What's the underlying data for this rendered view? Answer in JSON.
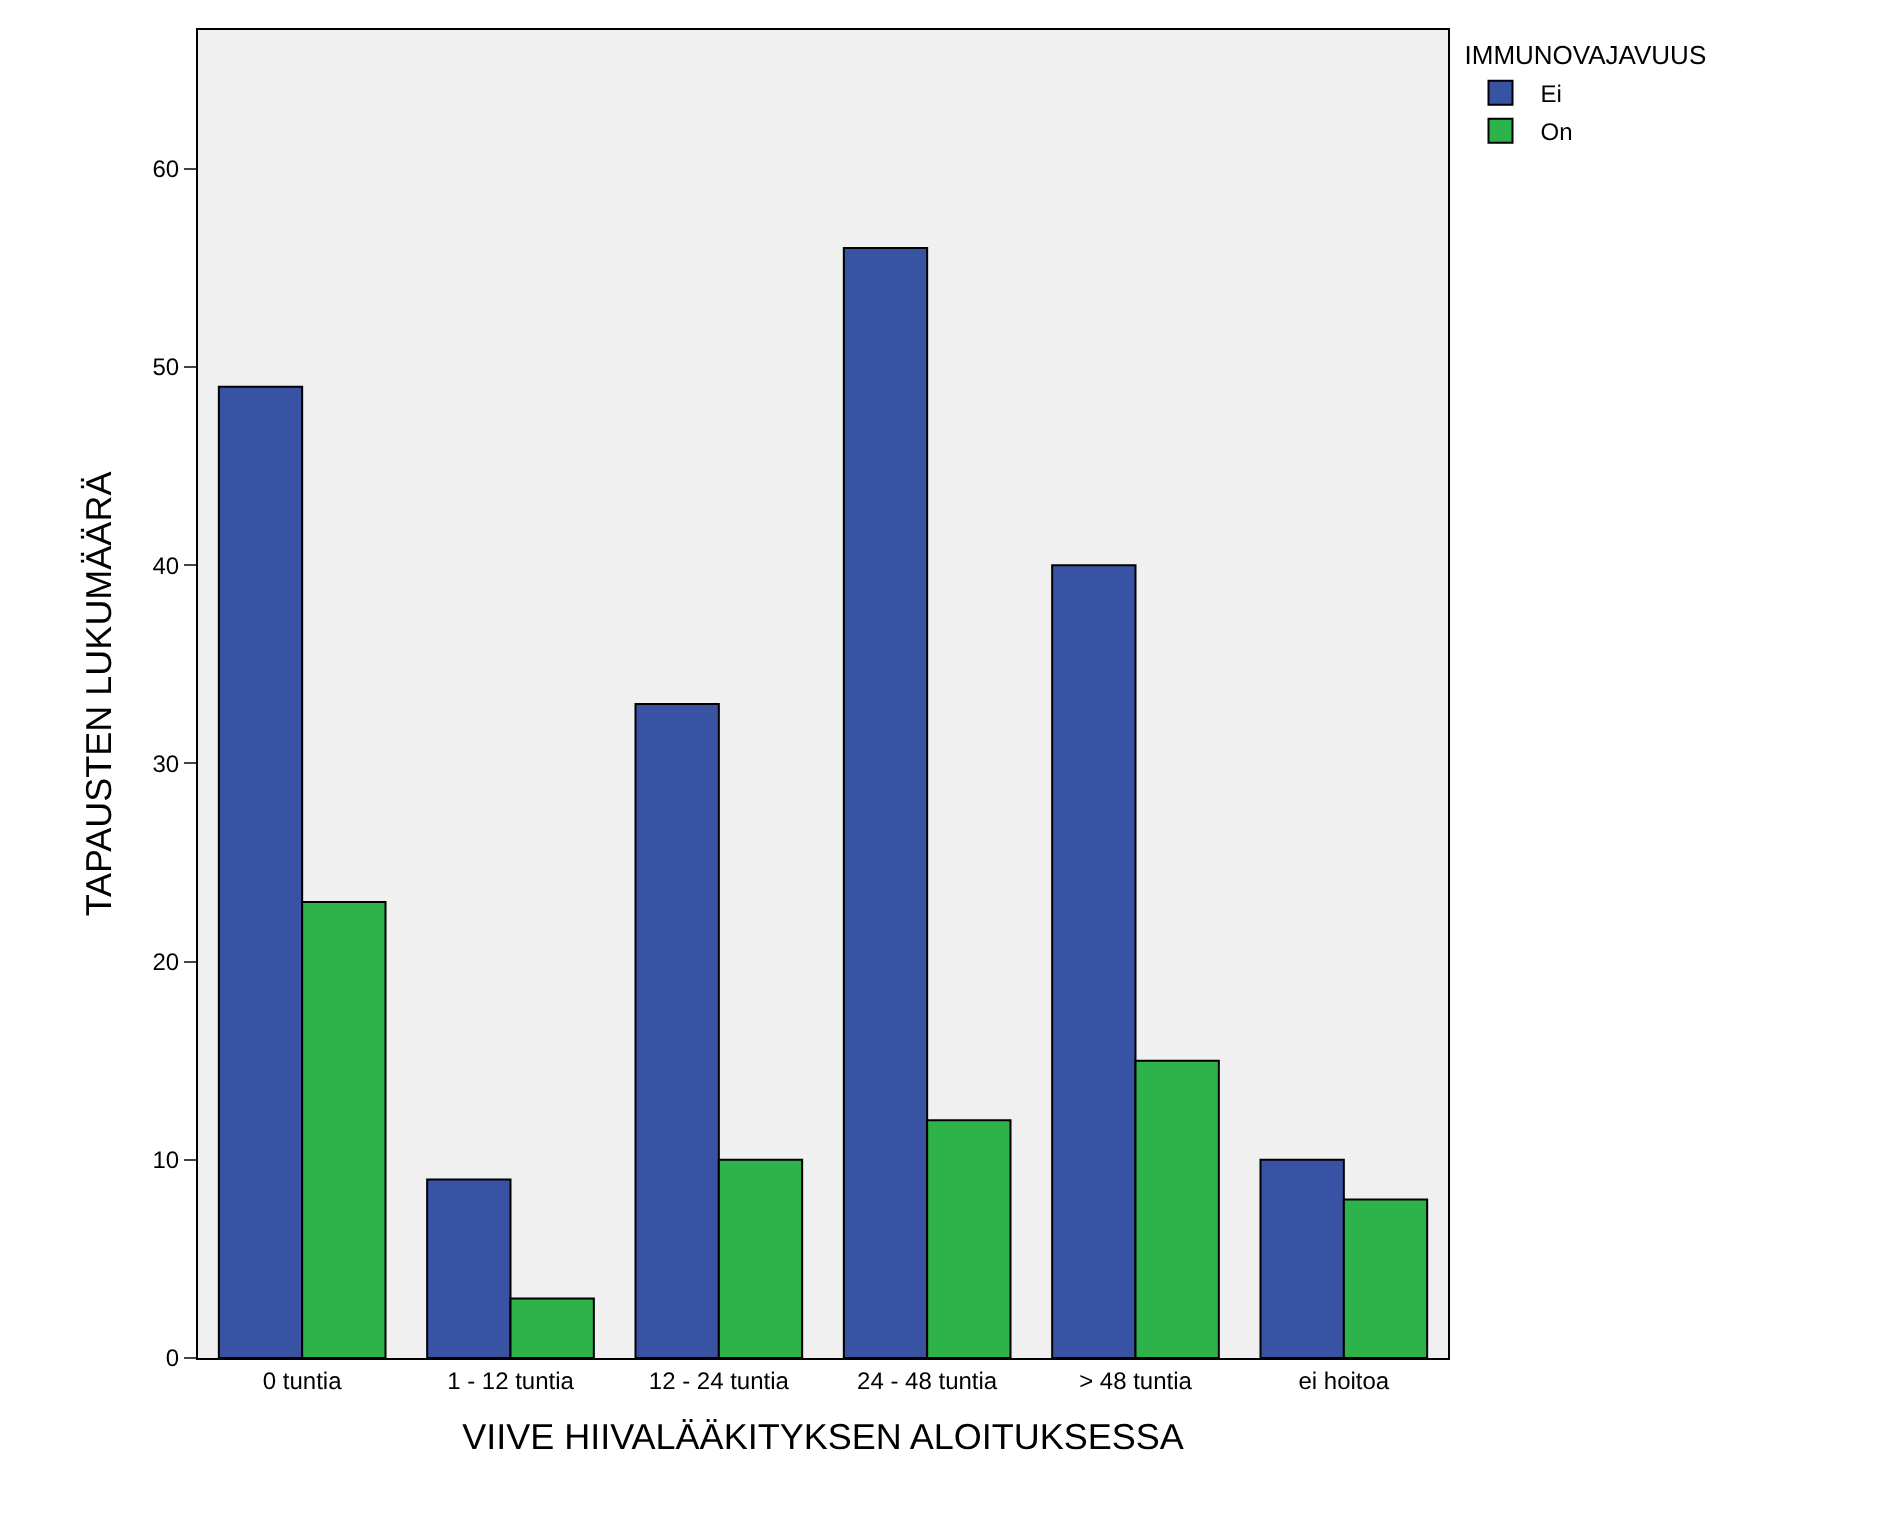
{
  "chart_data": {
    "type": "bar",
    "xlabel": "VIIVE HIIVALÄÄKITYKSEN ALOITUKSESSA",
    "ylabel": "TAPAUSTEN LUKUMÄÄRÄ",
    "legend_title": "IMMUNOVAJAVUUS",
    "categories": [
      "0 tuntia",
      "1 - 12 tuntia",
      "12 - 24 tuntia",
      "24 - 48 tuntia",
      "> 48 tuntia",
      "ei hoitoa"
    ],
    "series": [
      {
        "name": "Ei",
        "color": "#3953a4",
        "values": [
          49,
          9,
          33,
          56,
          40,
          10
        ]
      },
      {
        "name": "On",
        "color": "#2db34a",
        "values": [
          23,
          3,
          10,
          12,
          15,
          8
        ]
      }
    ],
    "ylim": [
      0,
      67
    ],
    "yticks": [
      0,
      10,
      20,
      30,
      40,
      50,
      60
    ],
    "grid": false,
    "legend": "top right"
  }
}
